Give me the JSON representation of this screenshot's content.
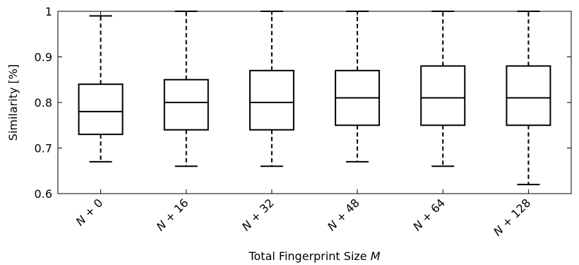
{
  "chart_data": {
    "type": "box",
    "xlabel": "Total Fingerprint Size M",
    "ylabel": "Similarity [%]",
    "ylim": [
      0.6,
      1.0
    ],
    "yticks": [
      0.6,
      0.7,
      0.8,
      0.9,
      1.0
    ],
    "ytick_labels": [
      "0.6",
      "0.7",
      "0.8",
      "0.9",
      "1"
    ],
    "categories": [
      "N + 0",
      "N + 16",
      "N + 32",
      "N + 48",
      "N + 64",
      "N + 128"
    ],
    "boxes": [
      {
        "category": "N + 0",
        "min": 0.67,
        "q1": 0.73,
        "median": 0.78,
        "q3": 0.84,
        "max": 0.99
      },
      {
        "category": "N + 16",
        "min": 0.66,
        "q1": 0.74,
        "median": 0.8,
        "q3": 0.85,
        "max": 1.0
      },
      {
        "category": "N + 32",
        "min": 0.66,
        "q1": 0.74,
        "median": 0.8,
        "q3": 0.87,
        "max": 1.0
      },
      {
        "category": "N + 48",
        "min": 0.67,
        "q1": 0.75,
        "median": 0.81,
        "q3": 0.87,
        "max": 1.0
      },
      {
        "category": "N + 64",
        "min": 0.66,
        "q1": 0.75,
        "median": 0.81,
        "q3": 0.88,
        "max": 1.0
      },
      {
        "category": "N + 128",
        "min": 0.62,
        "q1": 0.75,
        "median": 0.81,
        "q3": 0.88,
        "max": 1.0
      }
    ],
    "grid": false,
    "legend": "none"
  }
}
